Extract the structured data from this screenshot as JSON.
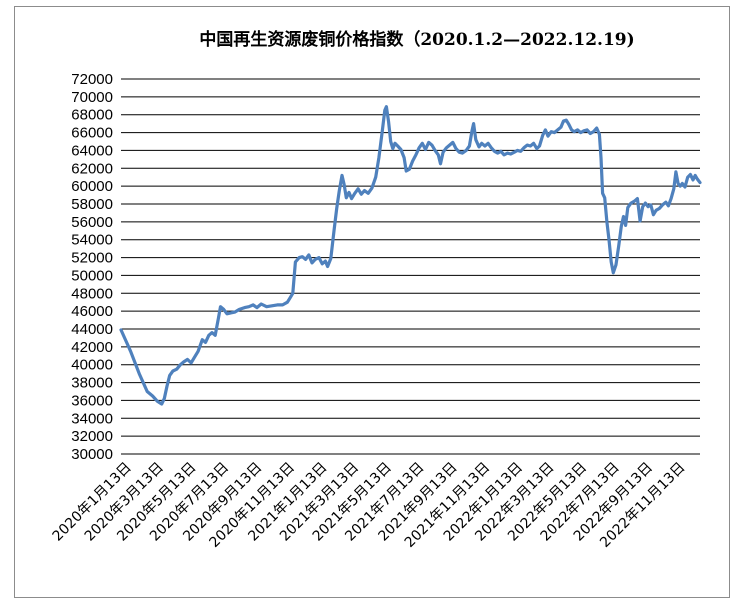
{
  "chart_data": {
    "type": "line",
    "title": "中国再生资源废铜价格指数（2020.1.2—2022.12.19)",
    "xlabel": "",
    "ylabel": "",
    "ylim": [
      30000,
      72000
    ],
    "y_ticks": [
      30000,
      32000,
      34000,
      36000,
      38000,
      40000,
      42000,
      44000,
      46000,
      48000,
      50000,
      52000,
      54000,
      56000,
      58000,
      60000,
      62000,
      64000,
      66000,
      68000,
      70000,
      72000
    ],
    "x_range": [
      "2020-01-02",
      "2022-12-19"
    ],
    "x_tick_labels": [
      {
        "date": "2020-01-13",
        "label": "2020年1月13日"
      },
      {
        "date": "2020-03-13",
        "label": "2020年3月13日"
      },
      {
        "date": "2020-05-13",
        "label": "2020年5月13日"
      },
      {
        "date": "2020-07-13",
        "label": "2020年7月13日"
      },
      {
        "date": "2020-09-13",
        "label": "2020年9月13日"
      },
      {
        "date": "2020-11-13",
        "label": "2020年11月13日"
      },
      {
        "date": "2021-01-13",
        "label": "2021年1月13日"
      },
      {
        "date": "2021-03-13",
        "label": "2021年3月13日"
      },
      {
        "date": "2021-05-13",
        "label": "2021年5月13日"
      },
      {
        "date": "2021-07-13",
        "label": "2021年7月13日"
      },
      {
        "date": "2021-09-13",
        "label": "2021年9月13日"
      },
      {
        "date": "2021-11-13",
        "label": "2021年11月13日"
      },
      {
        "date": "2022-01-13",
        "label": "2022年1月13日"
      },
      {
        "date": "2022-03-13",
        "label": "2022年3月13日"
      },
      {
        "date": "2022-05-13",
        "label": "2022年5月13日"
      },
      {
        "date": "2022-07-13",
        "label": "2022年7月13日"
      },
      {
        "date": "2022-09-13",
        "label": "2022年9月13日"
      },
      {
        "date": "2022-11-13",
        "label": "2022年11月13日"
      }
    ],
    "grid": true,
    "legend": "none",
    "line_color": "#4f81bd",
    "series": [
      {
        "points": [
          [
            "2020-01-02",
            43900
          ],
          [
            "2020-01-20",
            41500
          ],
          [
            "2020-02-05",
            39000
          ],
          [
            "2020-02-20",
            37000
          ],
          [
            "2020-03-01",
            36500
          ],
          [
            "2020-03-10",
            35900
          ],
          [
            "2020-03-18",
            35600
          ],
          [
            "2020-03-23",
            36200
          ],
          [
            "2020-03-28",
            37600
          ],
          [
            "2020-04-02",
            38800
          ],
          [
            "2020-04-08",
            39300
          ],
          [
            "2020-04-15",
            39500
          ],
          [
            "2020-04-22",
            40000
          ],
          [
            "2020-04-28",
            40300
          ],
          [
            "2020-05-05",
            40600
          ],
          [
            "2020-05-12",
            40200
          ],
          [
            "2020-05-18",
            40800
          ],
          [
            "2020-05-25",
            41500
          ],
          [
            "2020-06-02",
            42800
          ],
          [
            "2020-06-08",
            42500
          ],
          [
            "2020-06-14",
            43300
          ],
          [
            "2020-06-20",
            43600
          ],
          [
            "2020-06-26",
            43300
          ],
          [
            "2020-07-02",
            45200
          ],
          [
            "2020-07-06",
            46500
          ],
          [
            "2020-07-12",
            46200
          ],
          [
            "2020-07-18",
            45700
          ],
          [
            "2020-07-25",
            45800
          ],
          [
            "2020-08-02",
            45900
          ],
          [
            "2020-08-10",
            46200
          ],
          [
            "2020-08-20",
            46400
          ],
          [
            "2020-08-28",
            46500
          ],
          [
            "2020-09-05",
            46700
          ],
          [
            "2020-09-12",
            46400
          ],
          [
            "2020-09-20",
            46800
          ],
          [
            "2020-09-30",
            46500
          ],
          [
            "2020-10-10",
            46600
          ],
          [
            "2020-10-20",
            46700
          ],
          [
            "2020-10-30",
            46700
          ],
          [
            "2020-11-08",
            47000
          ],
          [
            "2020-11-13",
            47500
          ],
          [
            "2020-11-18",
            48000
          ],
          [
            "2020-11-23",
            51500
          ],
          [
            "2020-11-30",
            52000
          ],
          [
            "2020-12-06",
            52100
          ],
          [
            "2020-12-12",
            51800
          ],
          [
            "2020-12-18",
            52300
          ],
          [
            "2020-12-24",
            51400
          ],
          [
            "2020-12-30",
            51800
          ],
          [
            "2021-01-06",
            52000
          ],
          [
            "2021-01-12",
            51300
          ],
          [
            "2021-01-18",
            51600
          ],
          [
            "2021-01-22",
            51000
          ],
          [
            "2021-01-28",
            51900
          ],
          [
            "2021-02-03",
            55000
          ],
          [
            "2021-02-08",
            57500
          ],
          [
            "2021-02-13",
            59500
          ],
          [
            "2021-02-18",
            61200
          ],
          [
            "2021-02-22",
            60200
          ],
          [
            "2021-02-26",
            58700
          ],
          [
            "2021-03-03",
            59300
          ],
          [
            "2021-03-08",
            58600
          ],
          [
            "2021-03-14",
            59200
          ],
          [
            "2021-03-20",
            59700
          ],
          [
            "2021-03-26",
            59100
          ],
          [
            "2021-04-01",
            59500
          ],
          [
            "2021-04-08",
            59200
          ],
          [
            "2021-04-15",
            59800
          ],
          [
            "2021-04-22",
            61000
          ],
          [
            "2021-04-28",
            63200
          ],
          [
            "2021-05-04",
            66000
          ],
          [
            "2021-05-09",
            68500
          ],
          [
            "2021-05-12",
            68900
          ],
          [
            "2021-05-16",
            67200
          ],
          [
            "2021-05-20",
            65000
          ],
          [
            "2021-05-24",
            64200
          ],
          [
            "2021-05-28",
            64800
          ],
          [
            "2021-06-02",
            64500
          ],
          [
            "2021-06-08",
            64100
          ],
          [
            "2021-06-14",
            63200
          ],
          [
            "2021-06-18",
            61700
          ],
          [
            "2021-06-24",
            61900
          ],
          [
            "2021-06-30",
            62800
          ],
          [
            "2021-07-06",
            63500
          ],
          [
            "2021-07-12",
            64300
          ],
          [
            "2021-07-18",
            64800
          ],
          [
            "2021-07-24",
            64100
          ],
          [
            "2021-07-30",
            64900
          ],
          [
            "2021-08-05",
            64600
          ],
          [
            "2021-08-11",
            64000
          ],
          [
            "2021-08-17",
            63500
          ],
          [
            "2021-08-21",
            62500
          ],
          [
            "2021-08-26",
            63800
          ],
          [
            "2021-09-01",
            64300
          ],
          [
            "2021-09-07",
            64600
          ],
          [
            "2021-09-13",
            64900
          ],
          [
            "2021-09-19",
            64200
          ],
          [
            "2021-09-25",
            63800
          ],
          [
            "2021-10-01",
            63700
          ],
          [
            "2021-10-08",
            64000
          ],
          [
            "2021-10-14",
            64500
          ],
          [
            "2021-10-19",
            66200
          ],
          [
            "2021-10-22",
            67000
          ],
          [
            "2021-10-26",
            65200
          ],
          [
            "2021-11-01",
            64400
          ],
          [
            "2021-11-06",
            64800
          ],
          [
            "2021-11-12",
            64500
          ],
          [
            "2021-11-18",
            64800
          ],
          [
            "2021-11-24",
            64300
          ],
          [
            "2021-11-30",
            63900
          ],
          [
            "2021-12-06",
            63700
          ],
          [
            "2021-12-12",
            63900
          ],
          [
            "2021-12-18",
            63500
          ],
          [
            "2021-12-24",
            63700
          ],
          [
            "2021-12-30",
            63600
          ],
          [
            "2022-01-06",
            63800
          ],
          [
            "2022-01-12",
            64000
          ],
          [
            "2022-01-18",
            63900
          ],
          [
            "2022-01-24",
            64300
          ],
          [
            "2022-01-30",
            64600
          ],
          [
            "2022-02-05",
            64500
          ],
          [
            "2022-02-11",
            64800
          ],
          [
            "2022-02-17",
            64200
          ],
          [
            "2022-02-22",
            64500
          ],
          [
            "2022-02-28",
            65700
          ],
          [
            "2022-03-05",
            66300
          ],
          [
            "2022-03-10",
            65600
          ],
          [
            "2022-03-16",
            66100
          ],
          [
            "2022-03-22",
            66000
          ],
          [
            "2022-03-28",
            66300
          ],
          [
            "2022-04-03",
            66600
          ],
          [
            "2022-04-08",
            67300
          ],
          [
            "2022-04-13",
            67400
          ],
          [
            "2022-04-18",
            66900
          ],
          [
            "2022-04-23",
            66300
          ],
          [
            "2022-04-28",
            66100
          ],
          [
            "2022-05-04",
            66300
          ],
          [
            "2022-05-10",
            66000
          ],
          [
            "2022-05-16",
            66200
          ],
          [
            "2022-05-22",
            66300
          ],
          [
            "2022-05-28",
            65900
          ],
          [
            "2022-06-03",
            66100
          ],
          [
            "2022-06-09",
            66500
          ],
          [
            "2022-06-14",
            65800
          ],
          [
            "2022-06-17",
            63200
          ],
          [
            "2022-06-20",
            59200
          ],
          [
            "2022-06-24",
            58700
          ],
          [
            "2022-06-28",
            56000
          ],
          [
            "2022-07-02",
            54000
          ],
          [
            "2022-07-06",
            51500
          ],
          [
            "2022-07-10",
            50300
          ],
          [
            "2022-07-15",
            51200
          ],
          [
            "2022-07-20",
            53300
          ],
          [
            "2022-07-25",
            55500
          ],
          [
            "2022-07-29",
            56600
          ],
          [
            "2022-08-02",
            55600
          ],
          [
            "2022-08-06",
            57600
          ],
          [
            "2022-08-12",
            58100
          ],
          [
            "2022-08-18",
            58300
          ],
          [
            "2022-08-24",
            58600
          ],
          [
            "2022-08-29",
            56100
          ],
          [
            "2022-09-03",
            57700
          ],
          [
            "2022-09-08",
            58100
          ],
          [
            "2022-09-13",
            57700
          ],
          [
            "2022-09-18",
            57900
          ],
          [
            "2022-09-23",
            56800
          ],
          [
            "2022-09-28",
            57300
          ],
          [
            "2022-10-04",
            57500
          ],
          [
            "2022-10-10",
            57900
          ],
          [
            "2022-10-16",
            58200
          ],
          [
            "2022-10-21",
            57800
          ],
          [
            "2022-10-26",
            58600
          ],
          [
            "2022-10-31",
            59700
          ],
          [
            "2022-11-04",
            61600
          ],
          [
            "2022-11-08",
            60300
          ],
          [
            "2022-11-12",
            60000
          ],
          [
            "2022-11-16",
            60300
          ],
          [
            "2022-11-21",
            59900
          ],
          [
            "2022-11-26",
            61000
          ],
          [
            "2022-12-01",
            61300
          ],
          [
            "2022-12-06",
            60700
          ],
          [
            "2022-12-10",
            61200
          ],
          [
            "2022-12-14",
            60800
          ],
          [
            "2022-12-19",
            60400
          ]
        ]
      }
    ]
  }
}
